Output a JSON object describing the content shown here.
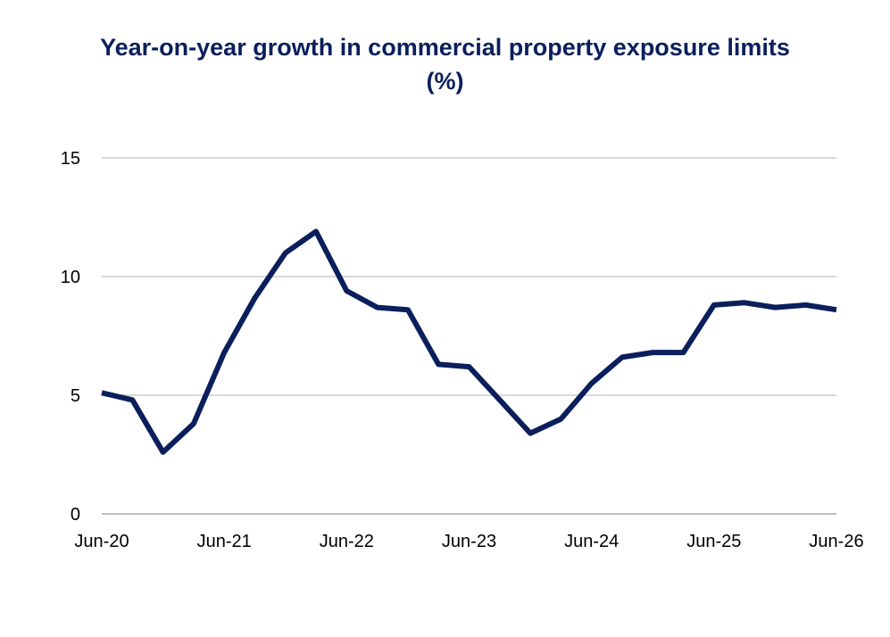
{
  "chart_data": {
    "type": "line",
    "title_line1": "Year-on-year growth in commercial property exposure limits",
    "title_line2": "(%)",
    "xlabel": "",
    "ylabel": "",
    "ylim": [
      0,
      15
    ],
    "yticks": [
      0,
      5,
      10,
      15
    ],
    "x_tick_labels": [
      "Jun-20",
      "Jun-21",
      "Jun-22",
      "Jun-23",
      "Jun-24",
      "Jun-25",
      "Jun-26"
    ],
    "grid": "horizontal",
    "line_color": "#0a1f5c",
    "series": [
      {
        "x": [
          "Jun-20",
          "Sep-20",
          "Dec-20",
          "Mar-21",
          "Jun-21",
          "Sep-21",
          "Dec-21",
          "Mar-22",
          "Jun-22",
          "Sep-22",
          "Dec-22",
          "Mar-23",
          "Jun-23",
          "Sep-23",
          "Dec-23",
          "Mar-24",
          "Jun-24",
          "Sep-24",
          "Dec-24",
          "Mar-25",
          "Jun-25",
          "Sep-25",
          "Dec-25",
          "Mar-26",
          "Jun-26"
        ],
        "values": [
          5.1,
          4.8,
          2.6,
          3.8,
          6.8,
          9.1,
          11.0,
          11.9,
          9.4,
          8.7,
          8.6,
          6.3,
          6.2,
          4.8,
          3.4,
          4.0,
          5.5,
          6.6,
          6.8,
          6.8,
          8.8,
          8.9,
          8.7,
          8.8,
          8.6
        ]
      }
    ]
  }
}
